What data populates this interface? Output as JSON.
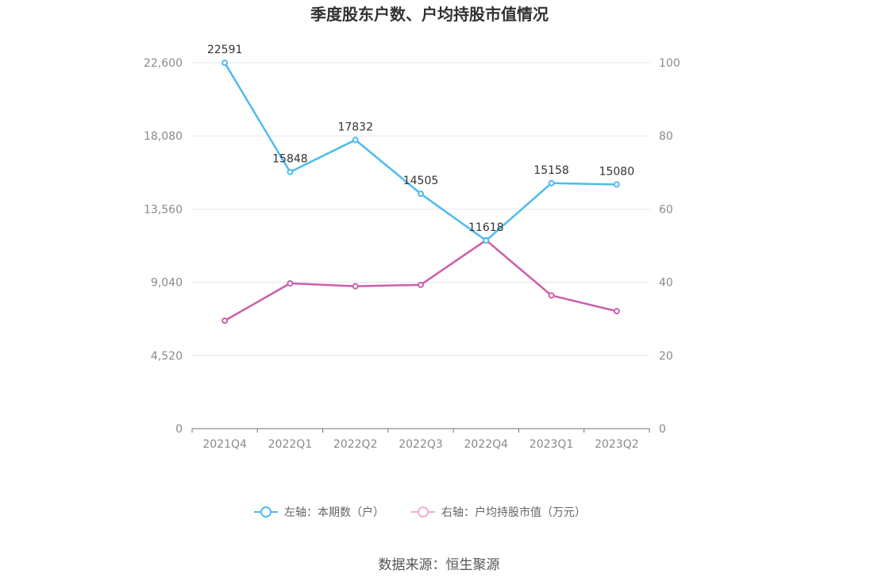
{
  "chart_data": {
    "type": "line",
    "title": "季度股东户数、户均持股市值情况",
    "categories": [
      "2021Q4",
      "2022Q1",
      "2022Q2",
      "2022Q3",
      "2022Q4",
      "2023Q1",
      "2023Q2"
    ],
    "y_left": {
      "ylim": [
        0,
        22600
      ],
      "ticks": [
        "0",
        "4,520",
        "9,040",
        "13,560",
        "18,080",
        "22,600"
      ]
    },
    "y_right": {
      "ylim": [
        0,
        100
      ],
      "ticks": [
        "0",
        "20",
        "40",
        "60",
        "80",
        "100"
      ]
    },
    "grid": true,
    "legend_position": "bottom",
    "series": [
      {
        "name": "左轴：本期数（户）",
        "axis": "left",
        "color": "#4fbbee",
        "values": [
          22591,
          15848,
          17832,
          14505,
          11618,
          15158,
          15080
        ],
        "labels_shown": true
      },
      {
        "name": "右轴：户均持股市值（万元）",
        "axis": "right",
        "color": "#cc5fa8",
        "values": [
          29.5,
          39.7,
          38.9,
          39.3,
          51.5,
          36.4,
          32.1
        ],
        "labels_shown": false
      }
    ]
  },
  "legend_left_marker_color": "#4fbbee",
  "legend_right_marker_color": "#efaed6",
  "source": "数据来源：恒生聚源"
}
